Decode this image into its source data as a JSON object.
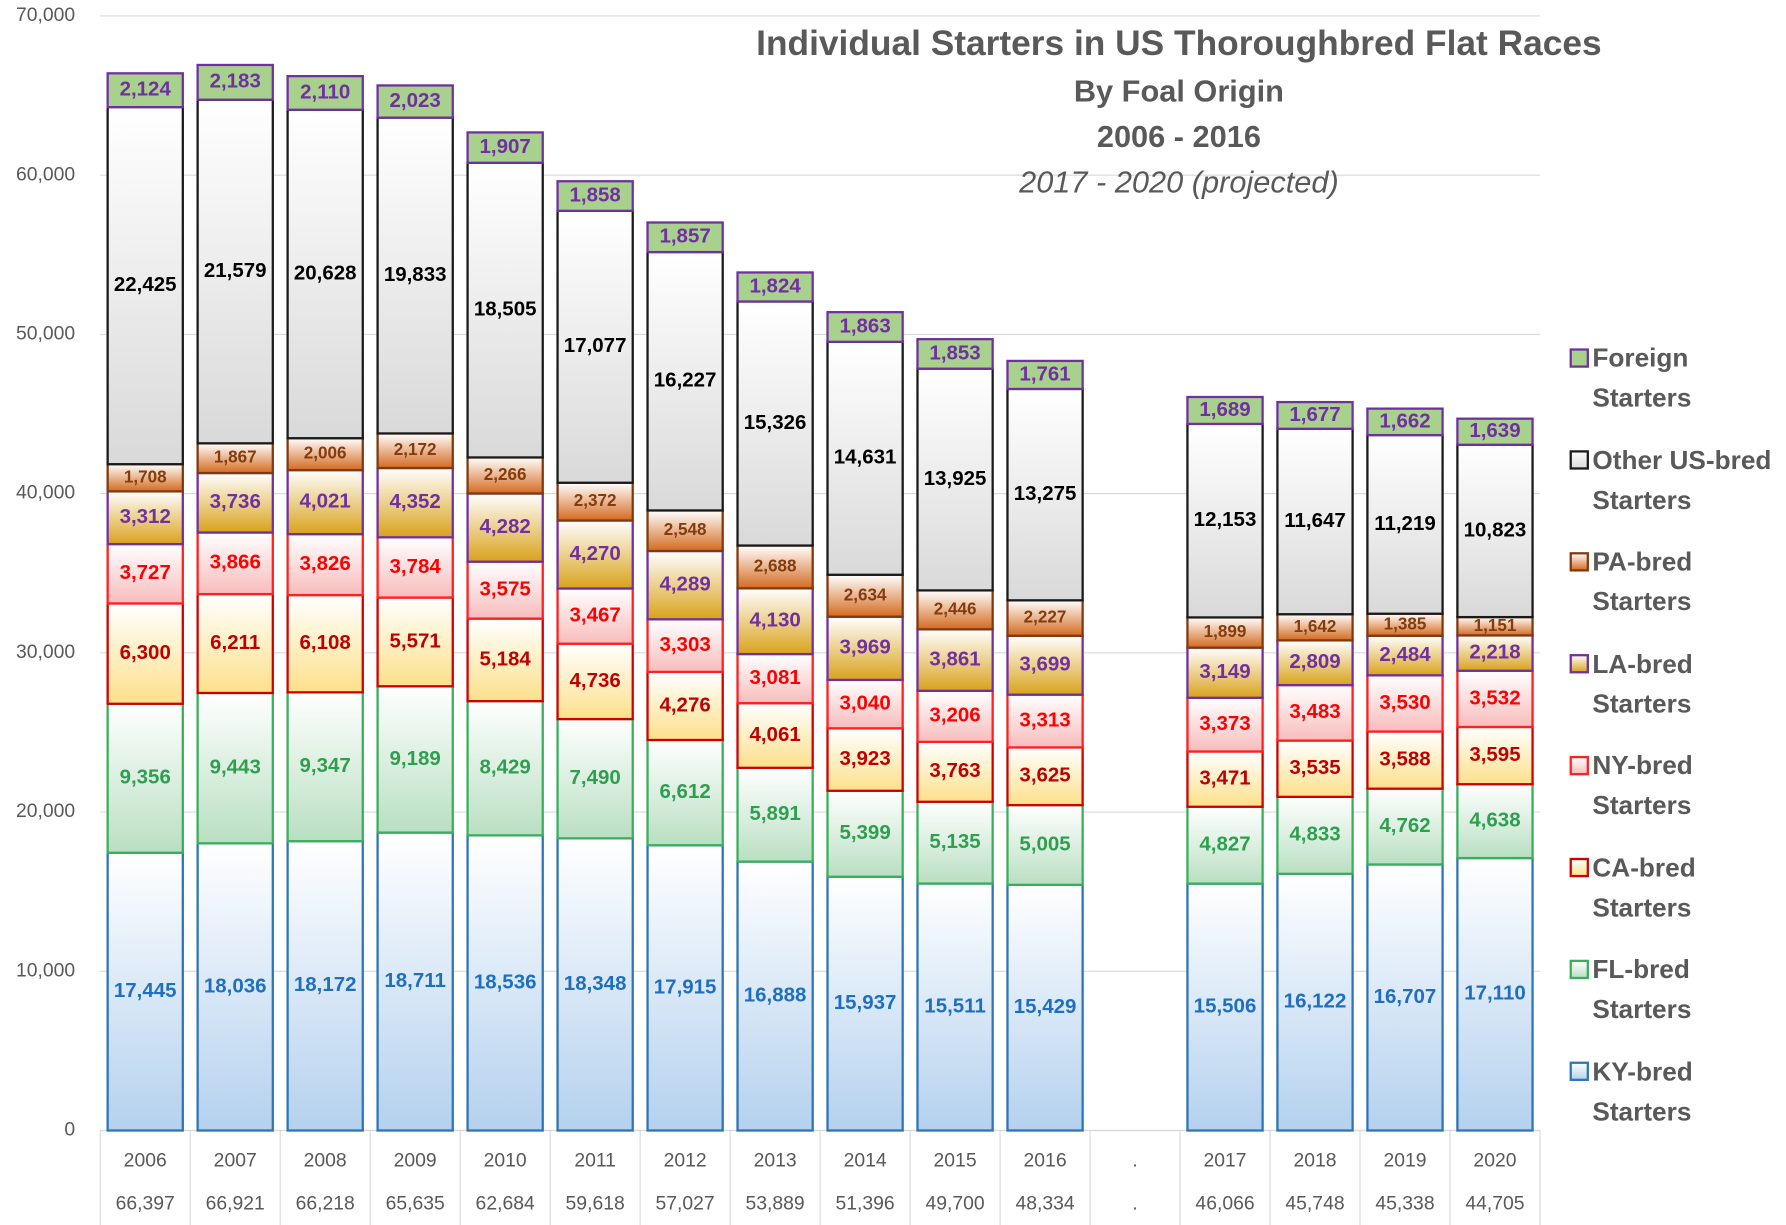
{
  "chart_data": {
    "type": "stacked_bar",
    "title": "Individual Starters in US Thoroughbred Flat Races",
    "subtitle": [
      "By Foal Origin",
      "2006 - 2016"
    ],
    "note": "2017 - 2020 (projected)",
    "categories": [
      "2006",
      "2007",
      "2008",
      "2009",
      "2010",
      "2011",
      "2012",
      "2013",
      "2014",
      "2015",
      "2016",
      ".",
      "2017",
      "2018",
      "2019",
      "2020"
    ],
    "category_sublabels": [
      "66,397",
      "66,921",
      "66,218",
      "65,635",
      "62,684",
      "59,618",
      "57,027",
      "53,889",
      "51,396",
      "49,700",
      "48,334",
      ".",
      "46,066",
      "45,748",
      "45,338",
      "44,705"
    ],
    "ylim": [
      0,
      70000
    ],
    "yticks": [
      0,
      {
        "value": 10000,
        "label": "10,000"
      },
      {
        "value": 20000,
        "label": "20,000"
      },
      {
        "value": 30000,
        "label": "30,000"
      },
      {
        "value": 40000,
        "label": "40,000"
      },
      {
        "value": 50000,
        "label": "50,000"
      },
      {
        "value": 60000,
        "label": "60,000"
      },
      {
        "value": 70000,
        "label": "70,000"
      }
    ],
    "grid": true,
    "legend": "right",
    "series": [
      {
        "name": "KY-bred\nStarters",
        "color": "#2e75b6",
        "fill": "#b4d1ee",
        "label_color": "#1f6fc0",
        "values": [
          17445,
          18036,
          18172,
          18711,
          18536,
          18348,
          17915,
          16888,
          15937,
          15511,
          15429,
          null,
          15506,
          16122,
          16707,
          17110
        ],
        "value_labels": [
          "17,445",
          "18,036",
          "18,172",
          "18,711",
          "18,536",
          "18,348",
          "17,915",
          "16,888",
          "15,937",
          "15,511",
          "15,429",
          null,
          "15,506",
          "16,122",
          "16,707",
          "17,110"
        ]
      },
      {
        "name": "FL-bred\nStarters",
        "color": "#3aae5c",
        "fill": "#b9dfc2",
        "label_color": "#2e9e4f",
        "values": [
          9356,
          9443,
          9347,
          9189,
          8429,
          7490,
          6612,
          5891,
          5399,
          5135,
          5005,
          null,
          4827,
          4833,
          4762,
          4638
        ],
        "value_labels": [
          "9,356",
          "9,443",
          "9,347",
          "9,189",
          "8,429",
          "7,490",
          "6,612",
          "5,891",
          "5,399",
          "5,135",
          "5,005",
          null,
          "4,827",
          "4,833",
          "4,762",
          "4,638"
        ]
      },
      {
        "name": "CA-bred\nStarters",
        "color": "#d00000",
        "fill": "#fde08a",
        "label_color": "#c00000",
        "values": [
          6300,
          6211,
          6108,
          5571,
          5184,
          4736,
          4276,
          4061,
          3923,
          3763,
          3625,
          null,
          3471,
          3535,
          3588,
          3595
        ],
        "value_labels": [
          "6,300",
          "6,211",
          "6,108",
          "5,571",
          "5,184",
          "4,736",
          "4,276",
          "4,061",
          "3,923",
          "3,763",
          "3,625",
          null,
          "3,471",
          "3,535",
          "3,588",
          "3,595"
        ]
      },
      {
        "name": "NY-bred\nStarters",
        "color": "#ff2020",
        "fill": "#f8bcbc",
        "label_color": "#ff0000",
        "values": [
          3727,
          3866,
          3826,
          3784,
          3575,
          3467,
          3303,
          3081,
          3040,
          3206,
          3313,
          null,
          3373,
          3483,
          3530,
          3532
        ],
        "value_labels": [
          "3,727",
          "3,866",
          "3,826",
          "3,784",
          "3,575",
          "3,467",
          "3,303",
          "3,081",
          "3,040",
          "3,206",
          "3,313",
          null,
          "3,373",
          "3,483",
          "3,530",
          "3,532"
        ]
      },
      {
        "name": "LA-bred\nStarters",
        "color": "#7030a0",
        "fill": "#d9a21b",
        "label_color": "#7030a0",
        "values": [
          3312,
          3736,
          4021,
          4352,
          4282,
          4270,
          4289,
          4130,
          3969,
          3861,
          3699,
          null,
          3149,
          2809,
          2484,
          2218
        ],
        "value_labels": [
          "3,312",
          "3,736",
          "4,021",
          "4,352",
          "4,282",
          "4,270",
          "4,289",
          "4,130",
          "3,969",
          "3,861",
          "3,699",
          null,
          "3,149",
          "2,809",
          "2,484",
          "2,218"
        ]
      },
      {
        "name": "PA-bred\nStarters",
        "color": "#7f3a10",
        "fill": "#d46a20",
        "label_color": "#843c0c",
        "values": [
          1708,
          1867,
          2006,
          2172,
          2266,
          2372,
          2548,
          2688,
          2634,
          2446,
          2227,
          null,
          1899,
          1642,
          1385,
          1151
        ],
        "value_labels": [
          "1,708",
          "1,867",
          "2,006",
          "2,172",
          "2,266",
          "2,372",
          "2,548",
          "2,688",
          "2,634",
          "2,446",
          "2,227",
          null,
          "1,899",
          "1,642",
          "1,385",
          "1,151"
        ]
      },
      {
        "name": "Other US-bred\nStarters",
        "color": "#1a1a1a",
        "fill": "#d9d9d9",
        "label_color": "#000000",
        "values": [
          22425,
          21579,
          20628,
          19833,
          18505,
          17077,
          16227,
          15326,
          14631,
          13925,
          13275,
          null,
          12153,
          11647,
          11219,
          10823
        ],
        "value_labels": [
          "22,425",
          "21,579",
          "20,628",
          "19,833",
          "18,505",
          "17,077",
          "16,227",
          "15,326",
          "14,631",
          "13,925",
          "13,275",
          null,
          "12,153",
          "11,647",
          "11,219",
          "10,823"
        ]
      },
      {
        "name": "Foreign\nStarters",
        "color": "#7030a0",
        "fill": "#a9d18e",
        "label_color": "#7030a0",
        "values": [
          2124,
          2183,
          2110,
          2023,
          1907,
          1858,
          1857,
          1824,
          1863,
          1853,
          1761,
          null,
          1689,
          1677,
          1662,
          1639
        ],
        "value_labels": [
          "2,124",
          "2,183",
          "2,110",
          "2,023",
          "1,907",
          "1,858",
          "1,857",
          "1,824",
          "1,863",
          "1,853",
          "1,761",
          null,
          "1,689",
          "1,677",
          "1,662",
          "1,639"
        ]
      }
    ]
  }
}
